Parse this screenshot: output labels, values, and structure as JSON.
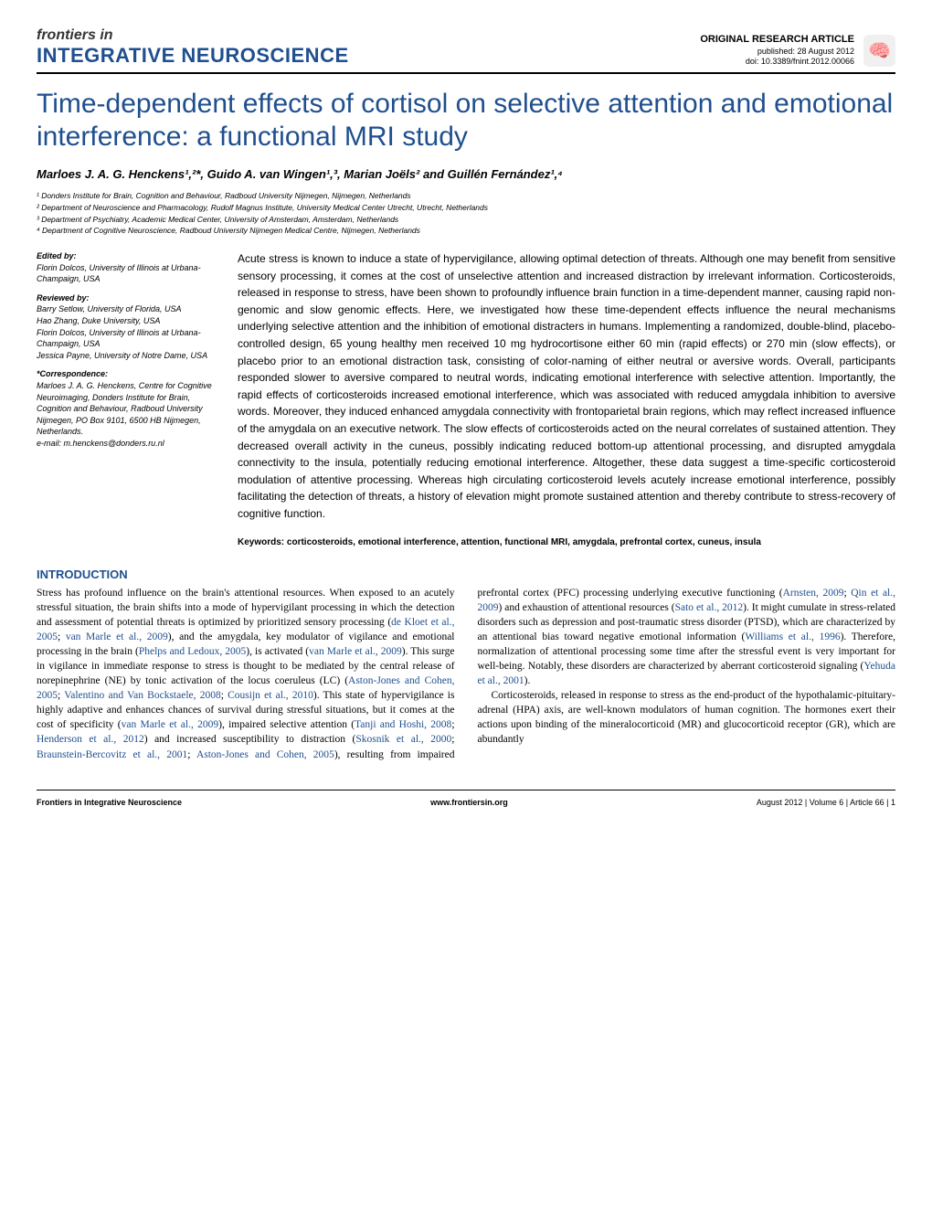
{
  "header": {
    "brand": "frontiers in",
    "journal": "INTEGRATIVE NEUROSCIENCE",
    "article_type": "ORIGINAL RESEARCH ARTICLE",
    "published": "published: 28 August 2012",
    "doi": "doi: 10.3389/fnint.2012.00066"
  },
  "title": "Time-dependent effects of cortisol on selective attention and emotional interference: a functional MRI study",
  "authors": "Marloes J. A. G. Henckens¹,²*, Guido A. van Wingen¹,³, Marian Joëls² and Guillén Fernández¹,⁴",
  "affiliations": {
    "a1": "¹ Donders Institute for Brain, Cognition and Behaviour, Radboud University Nijmegen, Nijmegen, Netherlands",
    "a2": "² Department of Neuroscience and Pharmacology, Rudolf Magnus Institute, University Medical Center Utrecht, Utrecht, Netherlands",
    "a3": "³ Department of Psychiatry, Academic Medical Center, University of Amsterdam, Amsterdam, Netherlands",
    "a4": "⁴ Department of Cognitive Neuroscience, Radboud University Nijmegen Medical Centre, Nijmegen, Netherlands"
  },
  "sidebar": {
    "edited_by_label": "Edited by:",
    "edited_by": "Florin Dolcos, University of Illinois at Urbana-Champaign, USA",
    "reviewed_by_label": "Reviewed by:",
    "reviewed_by_1": "Barry Setlow, University of Florida, USA",
    "reviewed_by_2": "Hao Zhang, Duke University, USA",
    "reviewed_by_3": "Florin Dolcos, University of Illinois at Urbana-Champaign, USA",
    "reviewed_by_4": "Jessica Payne, University of Notre Dame, USA",
    "correspondence_label": "*Correspondence:",
    "correspondence": "Marloes J. A. G. Henckens, Centre for Cognitive Neuroimaging, Donders Institute for Brain, Cognition and Behaviour, Radboud University Nijmegen, PO Box 9101, 6500 HB Nijmegen, Netherlands.",
    "email": "e-mail: m.henckens@donders.ru.nl"
  },
  "abstract": "Acute stress is known to induce a state of hypervigilance, allowing optimal detection of threats. Although one may benefit from sensitive sensory processing, it comes at the cost of unselective attention and increased distraction by irrelevant information. Corticosteroids, released in response to stress, have been shown to profoundly influence brain function in a time-dependent manner, causing rapid non-genomic and slow genomic effects. Here, we investigated how these time-dependent effects influence the neural mechanisms underlying selective attention and the inhibition of emotional distracters in humans. Implementing a randomized, double-blind, placebo-controlled design, 65 young healthy men received 10 mg hydrocortisone either 60 min (rapid effects) or 270 min (slow effects), or placebo prior to an emotional distraction task, consisting of color-naming of either neutral or aversive words. Overall, participants responded slower to aversive compared to neutral words, indicating emotional interference with selective attention. Importantly, the rapid effects of corticosteroids increased emotional interference, which was associated with reduced amygdala inhibition to aversive words. Moreover, they induced enhanced amygdala connectivity with frontoparietal brain regions, which may reflect increased influence of the amygdala on an executive network. The slow effects of corticosteroids acted on the neural correlates of sustained attention. They decreased overall activity in the cuneus, possibly indicating reduced bottom-up attentional processing, and disrupted amygdala connectivity to the insula, potentially reducing emotional interference. Altogether, these data suggest a time-specific corticosteroid modulation of attentive processing. Whereas high circulating corticosteroid levels acutely increase emotional interference, possibly facilitating the detection of threats, a history of elevation might promote sustained attention and thereby contribute to stress-recovery of cognitive function.",
  "keywords": "Keywords: corticosteroids, emotional interference, attention, functional MRI, amygdala, prefrontal cortex, cuneus, insula",
  "introduction": {
    "heading": "INTRODUCTION"
  },
  "footer": {
    "left": "Frontiers in Integrative Neuroscience",
    "center": "www.frontiersin.org",
    "right": "August 2012 | Volume 6 | Article 66 | 1"
  },
  "colors": {
    "primary": "#1f4f8f",
    "text": "#000000",
    "background": "#ffffff"
  }
}
